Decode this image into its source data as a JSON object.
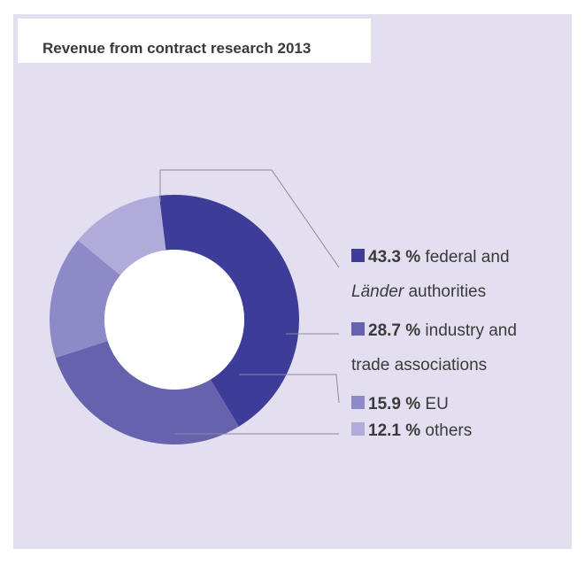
{
  "title": "Revenue from contract research 2013",
  "chart_data": {
    "type": "pie",
    "title": "Revenue from contract research 2013",
    "slices": [
      {
        "value": 43.3,
        "pct_label": "43.3 %",
        "text_parts": [
          [
            {
              "t": " federal and",
              "style": "normal"
            }
          ],
          [
            {
              "t": "Länder",
              "style": "italic"
            },
            {
              "t": " authorities",
              "style": "normal"
            }
          ]
        ],
        "color": "#3e3c99"
      },
      {
        "value": 28.7,
        "pct_label": "28.7 %",
        "text_parts": [
          [
            {
              "t": " industry and",
              "style": "normal"
            }
          ],
          [
            {
              "t": "trade associations",
              "style": "normal"
            }
          ]
        ],
        "color": "#6662ad"
      },
      {
        "value": 15.9,
        "pct_label": "15.9 %",
        "text_parts": [
          [
            {
              "t": " EU",
              "style": "normal"
            }
          ]
        ],
        "color": "#8e89c7"
      },
      {
        "value": 12.1,
        "pct_label": "12.1 %",
        "text_parts": [
          [
            {
              "t": " others",
              "style": "normal"
            }
          ]
        ],
        "color": "#b1abda"
      }
    ],
    "donut": true,
    "legend_position": "right"
  }
}
